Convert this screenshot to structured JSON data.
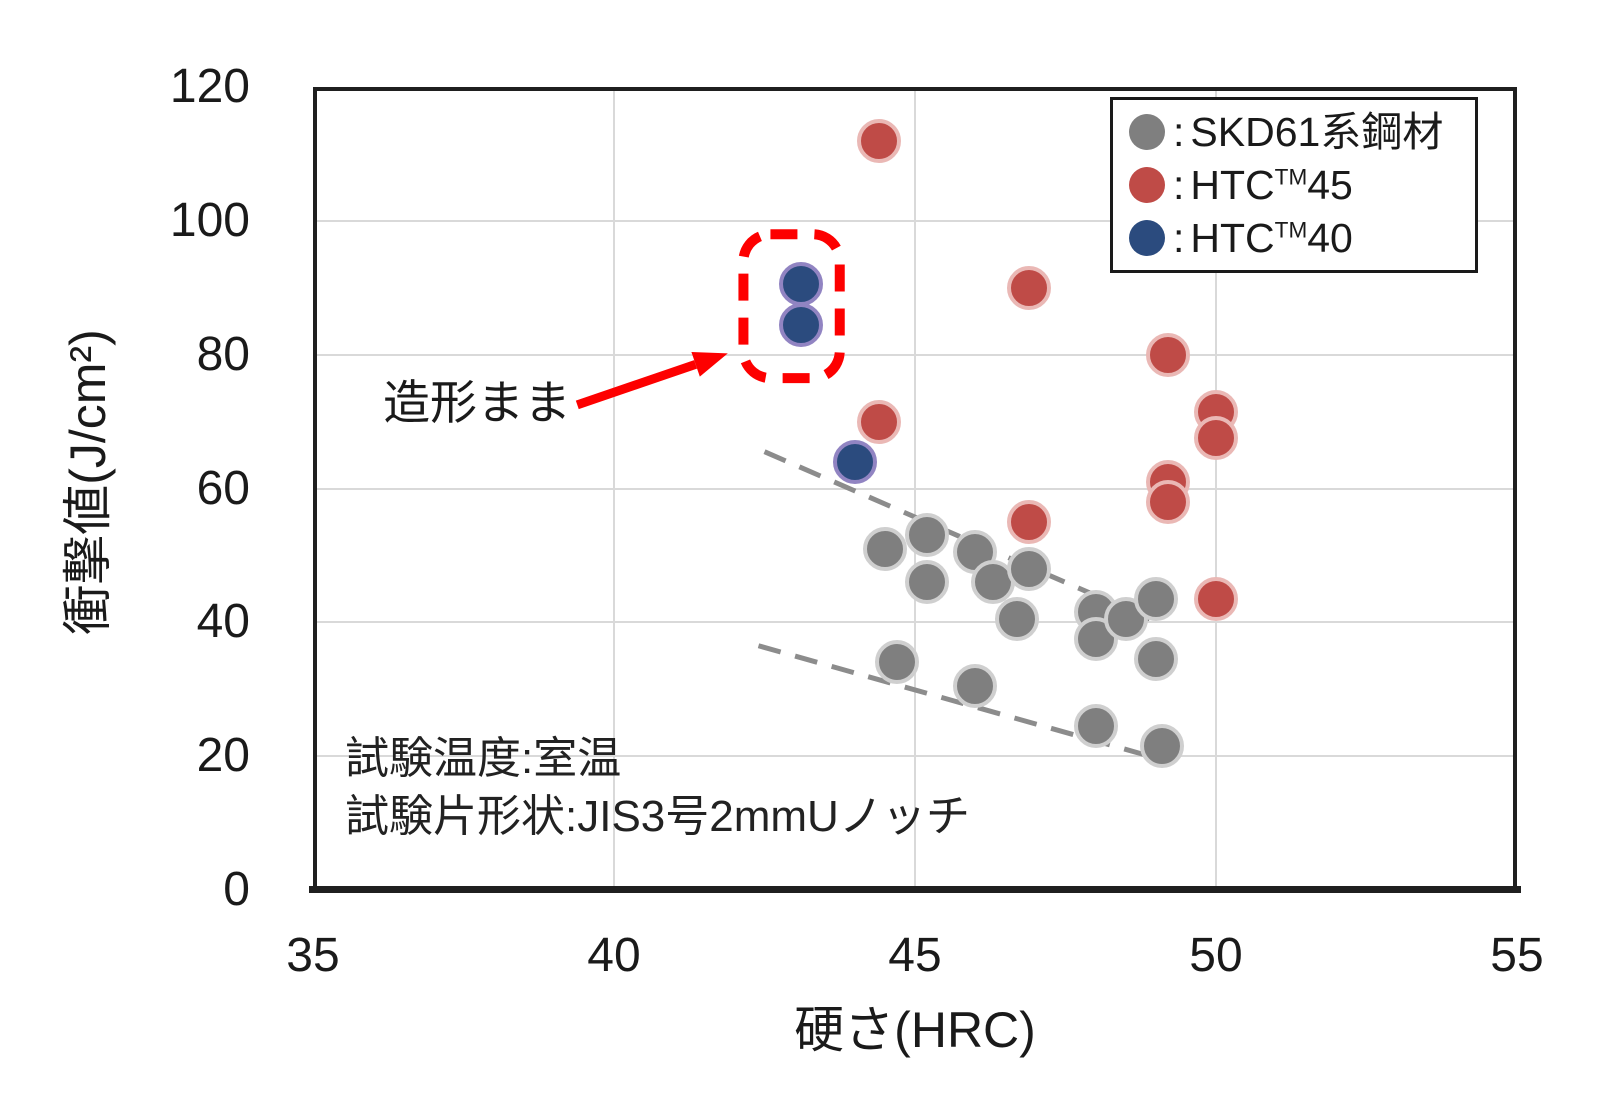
{
  "page": {
    "background": "#ffffff"
  },
  "chart_data": {
    "type": "scatter",
    "title": "",
    "xlabel": "硬さ(HRC)",
    "ylabel": "衝撃値(J/cm²)",
    "xlim": [
      35,
      55
    ],
    "ylim": [
      0,
      120
    ],
    "x_ticks": [
      35,
      40,
      45,
      50,
      55
    ],
    "y_ticks": [
      0,
      20,
      40,
      60,
      80,
      100,
      120
    ],
    "grid": true,
    "legend_position": "top-right",
    "series": [
      {
        "name": "SKD61系鋼材",
        "color": "#7f7f7f",
        "halo": "#cfcfcf",
        "points": [
          [
            44.5,
            51
          ],
          [
            45.2,
            53
          ],
          [
            45.2,
            46
          ],
          [
            46.0,
            50.5
          ],
          [
            46.3,
            46
          ],
          [
            46.9,
            48
          ],
          [
            46.7,
            40.5
          ],
          [
            48.0,
            41.5
          ],
          [
            48.0,
            37.5
          ],
          [
            48.5,
            40.5
          ],
          [
            49.0,
            43.5
          ],
          [
            49.0,
            34.5
          ],
          [
            44.7,
            34
          ],
          [
            46.0,
            30.5
          ],
          [
            48.0,
            24.5
          ],
          [
            49.1,
            21.5
          ]
        ]
      },
      {
        "name": "HTC™45",
        "color": "#bf4b47",
        "halo": "#eab8b5",
        "points": [
          [
            44.4,
            112
          ],
          [
            46.9,
            90
          ],
          [
            49.2,
            80
          ],
          [
            44.4,
            70
          ],
          [
            50.0,
            71.5
          ],
          [
            50.0,
            67.5
          ],
          [
            49.2,
            61
          ],
          [
            49.2,
            58
          ],
          [
            46.9,
            55
          ],
          [
            50.0,
            43.5
          ]
        ]
      },
      {
        "name": "HTC™40",
        "color": "#2b4b7e",
        "halo": "#9184c2",
        "points": [
          [
            43.1,
            90.5
          ],
          [
            43.1,
            84.5
          ],
          [
            44.0,
            64
          ]
        ]
      }
    ],
    "trend_lines": [
      {
        "color": "#8c8c8c",
        "from": [
          42.5,
          65.5
        ],
        "to": [
          48.9,
          40.5
        ]
      },
      {
        "color": "#8c8c8c",
        "from": [
          42.4,
          36.5
        ],
        "to": [
          48.9,
          20.0
        ]
      }
    ],
    "annotation": {
      "text": "造形まま",
      "color": "#fd0000",
      "box": {
        "x1": 42.15,
        "x2": 43.75,
        "y1": 76.5,
        "y2": 98.0
      },
      "arrow": {
        "from": [
          39.39,
          72.5
        ],
        "to": [
          41.89,
          80.2
        ]
      }
    },
    "notes": [
      "試験温度:室温",
      "試験片形状:JIS3号2mmUノッチ"
    ]
  },
  "legend": {
    "items": [
      {
        "color": "#7f7f7f",
        "colon": ":",
        "pre": "SKD61系鋼材",
        "sup": "",
        "post": ""
      },
      {
        "color": "#bf4b47",
        "colon": ":",
        "pre": "HTC",
        "sup": "TM",
        "post": "45"
      },
      {
        "color": "#2b4b7e",
        "colon": ":",
        "pre": "HTC",
        "sup": "TM",
        "post": "40"
      }
    ]
  }
}
